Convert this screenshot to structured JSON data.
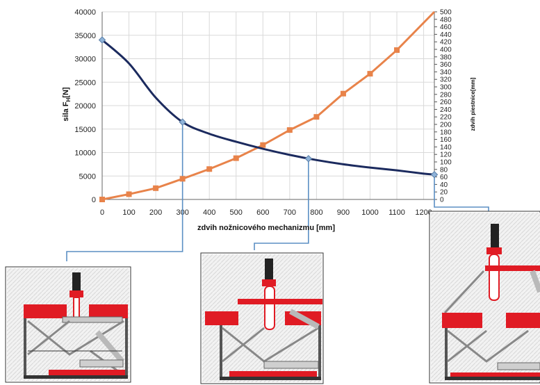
{
  "chart_data": {
    "type": "line",
    "xlabel": "zdvih nožnicového mechanizmu [mm]",
    "ylabel_left": "sila F",
    "ylabel_left_sub": "H",
    "ylabel_left_unit": "[N]",
    "ylabel_right": "zdvih piestnice[mm]",
    "xlim": [
      0,
      1240
    ],
    "ylim_left": [
      0,
      40000
    ],
    "ylim_right": [
      0,
      500
    ],
    "x_ticks": [
      "0",
      "100",
      "200",
      "300",
      "400",
      "500",
      "600",
      "700",
      "800",
      "900",
      "1000",
      "1100",
      "1200"
    ],
    "y_left_ticks": [
      "0",
      "5000",
      "10000",
      "15000",
      "20000",
      "25000",
      "30000",
      "35000",
      "40000"
    ],
    "y_right_ticks": [
      "0",
      "20",
      "40",
      "60",
      "80",
      "100",
      "120",
      "140",
      "160",
      "180",
      "200",
      "220",
      "240",
      "260",
      "280",
      "300",
      "320",
      "340",
      "360",
      "380",
      "400",
      "420",
      "440",
      "460",
      "480",
      "500"
    ],
    "series": [
      {
        "name": "",
        "axis": "left",
        "color": "#1b2a5e",
        "marker": "diamond",
        "x": [
          0,
          300,
          770,
          1240
        ],
        "y": [
          34000,
          16500,
          8700,
          5300
        ],
        "curve_x": [
          0,
          100,
          200,
          300,
          400,
          500,
          600,
          700,
          800,
          900,
          1000,
          1100,
          1200,
          1240
        ],
        "curve_y": [
          34000,
          29000,
          21700,
          16500,
          14000,
          12300,
          10800,
          9500,
          8400,
          7500,
          6800,
          6200,
          5500,
          5300
        ]
      },
      {
        "name": "",
        "axis": "right",
        "color": "#e8834a",
        "marker": "square",
        "x": [
          0,
          100,
          200,
          300,
          400,
          500,
          600,
          700,
          800,
          900,
          1000,
          1100,
          1240
        ],
        "y": [
          0,
          14,
          30,
          55,
          81,
          110,
          145,
          185,
          220,
          282,
          335,
          398,
          500
        ]
      }
    ],
    "callouts_x": [
      300,
      770,
      1240
    ]
  }
}
